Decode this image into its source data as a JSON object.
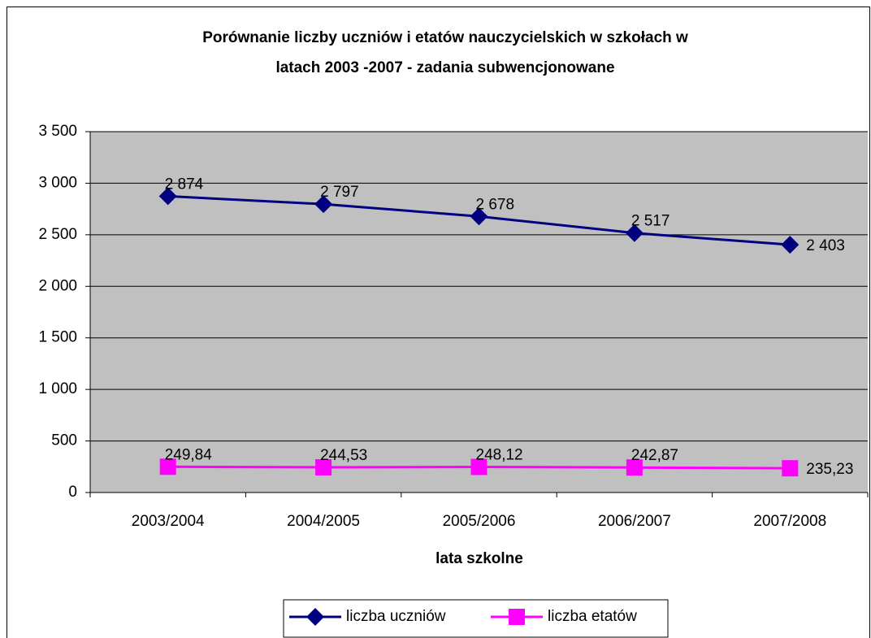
{
  "chart_data": {
    "type": "line",
    "title": [
      "Porównanie liczby uczniów i etatów nauczycielskich w szkołach w",
      "latach 2003 -2007 - zadania subwencjonowane"
    ],
    "x_label": "lata szkolne",
    "categories": [
      "2003/2004",
      "2004/2005",
      "2005/2006",
      "2006/2007",
      "2007/2008"
    ],
    "series": [
      {
        "name": "liczba uczniów",
        "color": "#000080",
        "marker": "diamond",
        "values": [
          2874,
          2797,
          2678,
          2517,
          2403
        ],
        "value_labels": [
          "2 874",
          "2 797",
          "2 678",
          "2 517",
          "2 403"
        ]
      },
      {
        "name": "liczba etatów",
        "color": "#ff00ff",
        "marker": "square",
        "values": [
          249.84,
          244.53,
          248.12,
          242.87,
          235.23
        ],
        "value_labels": [
          "249,84",
          "244,53",
          "248,12",
          "242,87",
          "235,23"
        ]
      }
    ],
    "ylim": [
      0,
      3500
    ],
    "yticks": [
      0,
      500,
      {
        "value": 1000,
        "label": "1 000"
      },
      {
        "value": 1500,
        "label": "1 500"
      },
      {
        "value": 2000,
        "label": "2 000"
      },
      {
        "value": 2500,
        "label": "2 500"
      },
      {
        "value": 3000,
        "label": "3 000"
      },
      {
        "value": 3500,
        "label": "3 500"
      }
    ],
    "grid": true,
    "plot_background": "#c0c0c0",
    "legend": "bottom"
  }
}
